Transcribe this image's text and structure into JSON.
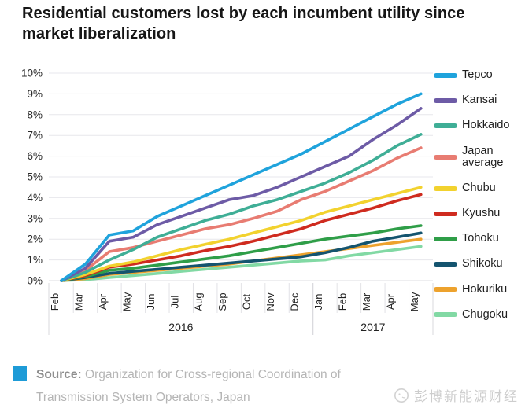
{
  "title": "Residential customers lost by each incumbent utility since market liberalization",
  "chart_data": {
    "type": "line",
    "x": [
      "Feb",
      "Mar",
      "Apr",
      "May",
      "Jun",
      "Jul",
      "Aug",
      "Sep",
      "Oct",
      "Nov",
      "Dec",
      "Jan",
      "Feb",
      "Mar",
      "Apr",
      "May"
    ],
    "year_groups": [
      {
        "label": "2016",
        "from": 0,
        "to": 10
      },
      {
        "label": "2017",
        "from": 11,
        "to": 15
      }
    ],
    "yticks": [
      "0%",
      "1%",
      "2%",
      "3%",
      "4%",
      "5%",
      "6%",
      "7%",
      "8%",
      "9%",
      "10%"
    ],
    "ylim": [
      0,
      10
    ],
    "ytick_step": 1,
    "grid": "horizontal",
    "legend_position": "right",
    "series": [
      {
        "name": "Tepco",
        "color": "#1fa3dc",
        "values": [
          0,
          0.8,
          2.2,
          2.4,
          3.1,
          3.6,
          4.1,
          4.6,
          5.1,
          5.6,
          6.1,
          6.7,
          7.3,
          7.9,
          8.5,
          9.0
        ]
      },
      {
        "name": "Kansai",
        "color": "#6d5ba6",
        "values": [
          0,
          0.6,
          1.9,
          2.1,
          2.7,
          3.1,
          3.5,
          3.9,
          4.1,
          4.5,
          5.0,
          5.5,
          6.0,
          6.8,
          7.5,
          8.3
        ]
      },
      {
        "name": "Hokkaido",
        "color": "#3fae96",
        "values": [
          0,
          0.4,
          1.0,
          1.5,
          2.1,
          2.5,
          2.9,
          3.2,
          3.6,
          3.9,
          4.3,
          4.7,
          5.2,
          5.8,
          6.5,
          7.05
        ]
      },
      {
        "name": "Japan average",
        "color": "#e87c72",
        "values": [
          0,
          0.5,
          1.4,
          1.6,
          1.9,
          2.2,
          2.5,
          2.7,
          3.0,
          3.35,
          3.9,
          4.3,
          4.8,
          5.3,
          5.9,
          6.4
        ]
      },
      {
        "name": "Chubu",
        "color": "#f2d22e",
        "values": [
          0,
          0.3,
          0.7,
          0.9,
          1.2,
          1.5,
          1.75,
          2.0,
          2.3,
          2.6,
          2.9,
          3.3,
          3.6,
          3.9,
          4.2,
          4.5
        ]
      },
      {
        "name": "Kyushu",
        "color": "#cf2b1f",
        "values": [
          0,
          0.25,
          0.65,
          0.8,
          1.0,
          1.2,
          1.45,
          1.65,
          1.9,
          2.2,
          2.5,
          2.9,
          3.2,
          3.5,
          3.85,
          4.15
        ]
      },
      {
        "name": "Tohoku",
        "color": "#2f9e48",
        "values": [
          0,
          0.2,
          0.5,
          0.6,
          0.75,
          0.9,
          1.05,
          1.2,
          1.4,
          1.6,
          1.8,
          2.0,
          2.15,
          2.3,
          2.5,
          2.65
        ]
      },
      {
        "name": "Shikoku",
        "color": "#14546f",
        "values": [
          0,
          0.15,
          0.35,
          0.45,
          0.55,
          0.65,
          0.75,
          0.85,
          0.95,
          1.05,
          1.15,
          1.35,
          1.6,
          1.9,
          2.1,
          2.3
        ]
      },
      {
        "name": "Hokuriku",
        "color": "#eda22d",
        "values": [
          0,
          0.1,
          0.3,
          0.4,
          0.5,
          0.6,
          0.7,
          0.8,
          0.95,
          1.1,
          1.25,
          1.4,
          1.55,
          1.7,
          1.85,
          2.0
        ]
      },
      {
        "name": "Chugoku",
        "color": "#82d9a4",
        "values": [
          0,
          0.05,
          0.15,
          0.25,
          0.35,
          0.45,
          0.55,
          0.65,
          0.75,
          0.85,
          0.95,
          1.0,
          1.2,
          1.35,
          1.5,
          1.65
        ]
      }
    ]
  },
  "source": {
    "label": "Source:",
    "text": "Organization for Cross-regional Coordination of Transmission System Operators, Japan",
    "square_color": "#1e9bd7"
  },
  "watermark": {
    "text": "彭博新能源财经"
  }
}
